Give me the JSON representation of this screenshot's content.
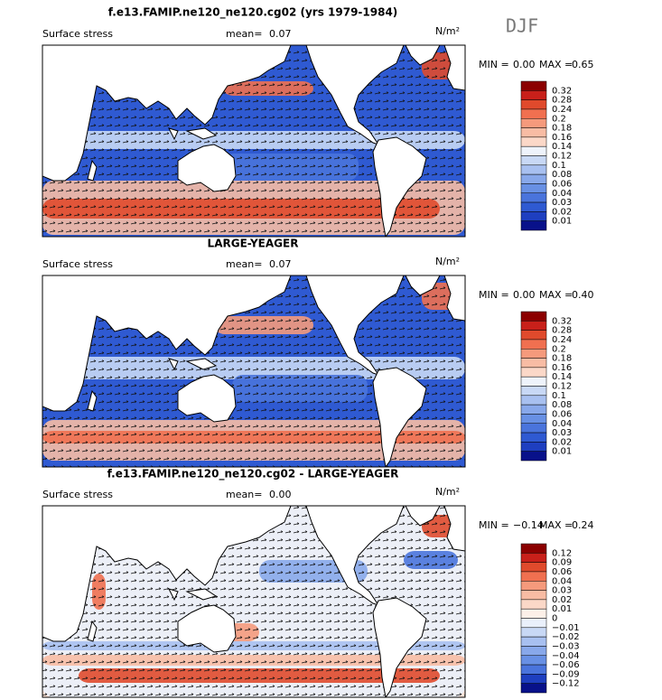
{
  "header": {
    "season": "DJF"
  },
  "panels": [
    {
      "title": "f.e13.FAMIP.ne120_ne120.cg02 (yrs 1979-1984)",
      "variable": "Surface stress",
      "mean_label": "mean=",
      "mean": "0.07",
      "units": "N/m²",
      "min_label": "MIN =",
      "min": "0.00",
      "max_label": "MAX =",
      "max": "0.65",
      "colorbar": {
        "labels": [
          "0.32",
          "0.28",
          "0.24",
          "0.2",
          "0.18",
          "0.16",
          "0.14",
          "0.12",
          "0.1",
          "0.08",
          "0.06",
          "0.04",
          "0.03",
          "0.02",
          "0.01"
        ],
        "colors": [
          "#8b0000",
          "#c8201a",
          "#e04a2c",
          "#f07050",
          "#f59a7c",
          "#f8bca4",
          "#fbd8c8",
          "#eef3fb",
          "#c8d8f5",
          "#a8c0f0",
          "#88a8ea",
          "#6890e4",
          "#4a74dc",
          "#2f5ad2",
          "#1e3fc0",
          "#08118a"
        ]
      }
    },
    {
      "title": "LARGE-YEAGER",
      "variable": "Surface stress",
      "mean_label": "mean=",
      "mean": "0.07",
      "units": "N/m²",
      "min_label": "MIN =",
      "min": "0.00",
      "max_label": "MAX =",
      "max": "0.40",
      "colorbar": {
        "labels": [
          "0.32",
          "0.28",
          "0.24",
          "0.2",
          "0.18",
          "0.16",
          "0.14",
          "0.12",
          "0.1",
          "0.08",
          "0.06",
          "0.04",
          "0.03",
          "0.02",
          "0.01"
        ],
        "colors": [
          "#8b0000",
          "#c8201a",
          "#e04a2c",
          "#f07050",
          "#f59a7c",
          "#f8bca4",
          "#fbd8c8",
          "#eef3fb",
          "#c8d8f5",
          "#a8c0f0",
          "#88a8ea",
          "#6890e4",
          "#4a74dc",
          "#2f5ad2",
          "#1e3fc0",
          "#08118a"
        ]
      }
    },
    {
      "title": "f.e13.FAMIP.ne120_ne120.cg02 - LARGE-YEAGER",
      "variable": "Surface stress",
      "mean_label": "mean=",
      "mean": "0.00",
      "units": "N/m²",
      "min_label": "MIN =",
      "min": "−0.14",
      "max_label": "MAX =",
      "max": "0.24",
      "colorbar": {
        "labels": [
          "0.12",
          "0.09",
          "0.06",
          "0.04",
          "0.03",
          "0.02",
          "0.01",
          "0",
          "−0.01",
          "−0.02",
          "−0.03",
          "−0.04",
          "−0.06",
          "−0.09",
          "−0.12"
        ],
        "colors": [
          "#8b0000",
          "#c8201a",
          "#e04a2c",
          "#f07050",
          "#f59a7c",
          "#f8bca4",
          "#fbd8c8",
          "#fdf0e8",
          "#eaf0fb",
          "#c8d8f5",
          "#a8c0f0",
          "#88a8ea",
          "#6890e4",
          "#4a74dc",
          "#1e3fc0",
          "#08118a"
        ]
      }
    }
  ]
}
